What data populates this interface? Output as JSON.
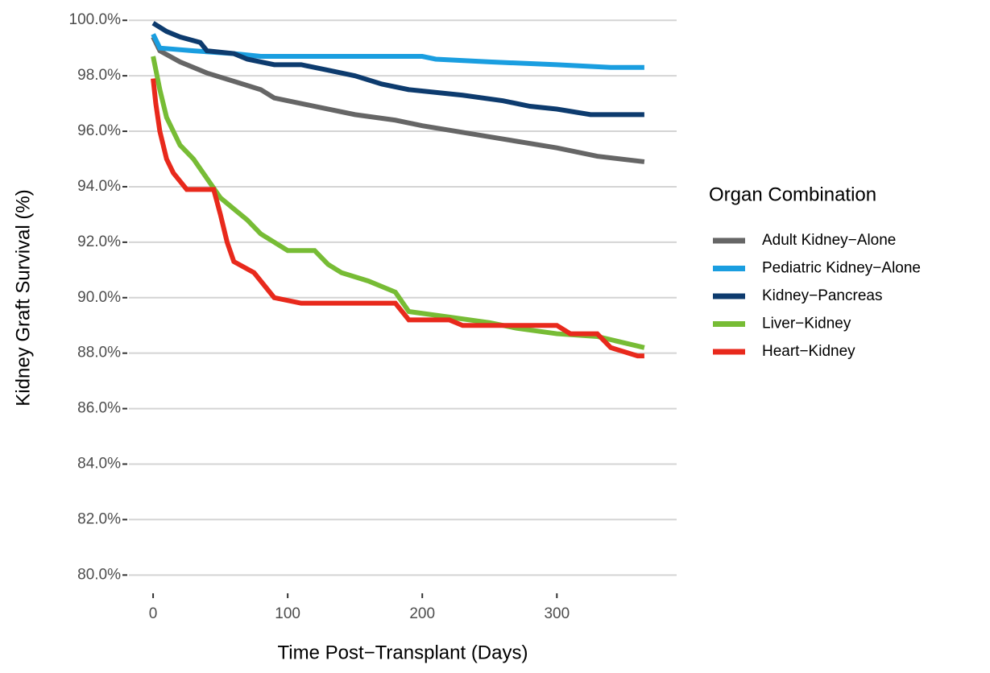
{
  "chart_data": {
    "type": "line",
    "x_label": "Time Post−Transplant (Days)",
    "y_label": "Kidney Graft Survival (%)",
    "legend_title": "Organ Combination",
    "legend_position": "right",
    "grid": true,
    "xlim": [
      -18,
      389
    ],
    "ylim": [
      79.4,
      100.5
    ],
    "xticks": [
      0,
      100,
      200,
      300
    ],
    "yticks": [
      {
        "value": 80,
        "label": "80.0%"
      },
      {
        "value": 82,
        "label": "82.0%"
      },
      {
        "value": 84,
        "label": "84.0%"
      },
      {
        "value": 86,
        "label": "86.0%"
      },
      {
        "value": 88,
        "label": "88.0%"
      },
      {
        "value": 90,
        "label": "90.0%"
      },
      {
        "value": 92,
        "label": "92.0%"
      },
      {
        "value": 94,
        "label": "94.0%"
      },
      {
        "value": 96,
        "label": "96.0%"
      },
      {
        "value": 98,
        "label": "98.0%"
      },
      {
        "value": 100,
        "label": "100.0%"
      }
    ],
    "series": [
      {
        "name": "Adult Kidney−Alone",
        "color": "#666666",
        "x": [
          0,
          5,
          20,
          40,
          60,
          80,
          90,
          120,
          150,
          180,
          200,
          250,
          300,
          330,
          365
        ],
        "values": [
          99.4,
          98.9,
          98.5,
          98.1,
          97.8,
          97.5,
          97.2,
          96.9,
          96.6,
          96.4,
          96.2,
          95.8,
          95.4,
          95.1,
          94.9
        ]
      },
      {
        "name": "Pediatric Kidney−Alone",
        "color": "#1a9ee0",
        "x": [
          0,
          5,
          30,
          60,
          80,
          200,
          210,
          250,
          300,
          340,
          365
        ],
        "values": [
          99.5,
          99.0,
          98.9,
          98.8,
          98.7,
          98.7,
          98.6,
          98.5,
          98.4,
          98.3,
          98.3
        ]
      },
      {
        "name": "Kidney−Pancreas",
        "color": "#0d3b6e",
        "x": [
          0,
          10,
          20,
          35,
          40,
          60,
          70,
          90,
          110,
          130,
          150,
          170,
          190,
          230,
          260,
          280,
          300,
          325,
          365
        ],
        "values": [
          99.9,
          99.6,
          99.4,
          99.2,
          98.9,
          98.8,
          98.6,
          98.4,
          98.4,
          98.2,
          98.0,
          97.7,
          97.5,
          97.3,
          97.1,
          96.9,
          96.8,
          96.6,
          96.6
        ]
      },
      {
        "name": "Liver−Kidney",
        "color": "#77bc35",
        "x": [
          0,
          5,
          10,
          20,
          30,
          40,
          50,
          60,
          70,
          80,
          90,
          100,
          120,
          130,
          140,
          160,
          180,
          190,
          220,
          250,
          270,
          300,
          330,
          365
        ],
        "values": [
          98.7,
          97.5,
          96.5,
          95.5,
          95.0,
          94.3,
          93.6,
          93.2,
          92.8,
          92.3,
          92.0,
          91.7,
          91.7,
          91.2,
          90.9,
          90.6,
          90.2,
          89.5,
          89.3,
          89.1,
          88.9,
          88.7,
          88.6,
          88.2
        ]
      },
      {
        "name": "Heart−Kidney",
        "color": "#e8291c",
        "x": [
          0,
          2,
          5,
          10,
          15,
          25,
          45,
          50,
          55,
          60,
          75,
          85,
          90,
          110,
          180,
          185,
          190,
          220,
          230,
          300,
          310,
          330,
          340,
          360,
          365
        ],
        "values": [
          97.9,
          97.0,
          96.0,
          95.0,
          94.5,
          93.9,
          93.9,
          93.0,
          92.0,
          91.3,
          90.9,
          90.3,
          90.0,
          89.8,
          89.8,
          89.5,
          89.2,
          89.2,
          89.0,
          89.0,
          88.7,
          88.7,
          88.2,
          87.9,
          87.9
        ]
      }
    ]
  }
}
